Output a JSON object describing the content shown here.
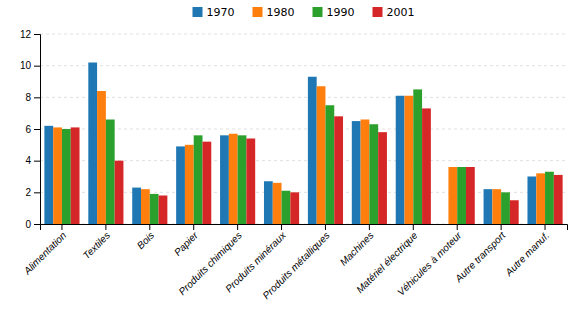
{
  "chart_data": {
    "type": "bar",
    "categories": [
      "Alimentation",
      "Textiles",
      "Bois",
      "Papier",
      "Produits chimiques",
      "Produits minéraux",
      "Produits métalliques",
      "Machines",
      "Matériel électrique",
      "Véhicules à moteur",
      "Autre transport",
      "Autre manuf."
    ],
    "series": [
      {
        "name": "1970",
        "values": [
          6.2,
          10.2,
          2.3,
          4.9,
          5.6,
          2.7,
          9.3,
          6.5,
          8.1,
          0.0,
          2.2,
          3.0
        ]
      },
      {
        "name": "1980",
        "values": [
          6.1,
          8.4,
          2.2,
          5.0,
          5.7,
          2.6,
          8.7,
          6.6,
          8.1,
          3.6,
          2.2,
          3.2
        ]
      },
      {
        "name": "1990",
        "values": [
          6.0,
          6.6,
          1.9,
          5.6,
          5.6,
          2.1,
          7.5,
          6.3,
          8.5,
          3.6,
          2.0,
          3.3
        ]
      },
      {
        "name": "2001",
        "values": [
          6.1,
          4.0,
          1.8,
          5.2,
          5.4,
          2.0,
          6.8,
          5.8,
          7.3,
          3.6,
          1.5,
          3.1
        ]
      }
    ],
    "ylim": [
      0,
      12
    ],
    "yticks": [
      0,
      2,
      4,
      6,
      8,
      10,
      12
    ],
    "grid": true,
    "legend": "top"
  }
}
